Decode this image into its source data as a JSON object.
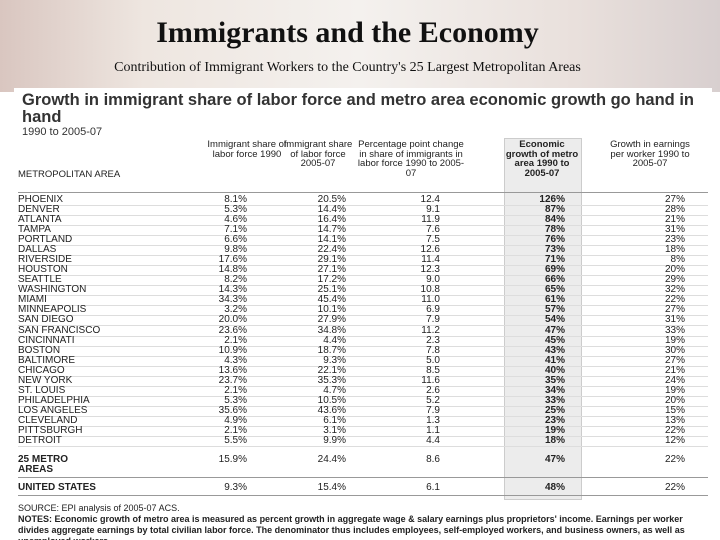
{
  "slide": {
    "title": "Immigrants and the Economy",
    "subtitle": "Contribution of Immigrant Workers to the Country's 25 Largest Metropolitan Areas"
  },
  "figure": {
    "title": "Growth in immigrant share of labor force and metro area economic growth go hand in hand",
    "subtitle": "1990 to 2005-07",
    "table": {
      "headers": [
        "METROPOLITAN AREA",
        "Immigrant share of labor force 1990",
        "Immigrant share of labor force 2005-07",
        "Percentage point change in share of immigrants in labor force 1990 to 2005-07",
        "Economic growth of metro area 1990 to 2005-07",
        "Growth in earnings per worker 1990 to 2005-07"
      ],
      "rows": [
        [
          "PHOENIX",
          "8.1%",
          "20.5%",
          "12.4",
          "126%",
          "27%"
        ],
        [
          "DENVER",
          "5.3%",
          "14.4%",
          "9.1",
          "87%",
          "28%"
        ],
        [
          "ATLANTA",
          "4.6%",
          "16.4%",
          "11.9",
          "84%",
          "21%"
        ],
        [
          "TAMPA",
          "7.1%",
          "14.7%",
          "7.6",
          "78%",
          "31%"
        ],
        [
          "PORTLAND",
          "6.6%",
          "14.1%",
          "7.5",
          "76%",
          "23%"
        ],
        [
          "DALLAS",
          "9.8%",
          "22.4%",
          "12.6",
          "73%",
          "18%"
        ],
        [
          "RIVERSIDE",
          "17.6%",
          "29.1%",
          "11.4",
          "71%",
          "8%"
        ],
        [
          "HOUSTON",
          "14.8%",
          "27.1%",
          "12.3",
          "69%",
          "20%"
        ],
        [
          "SEATTLE",
          "8.2%",
          "17.2%",
          "9.0",
          "66%",
          "29%"
        ],
        [
          "WASHINGTON",
          "14.3%",
          "25.1%",
          "10.8",
          "65%",
          "32%"
        ],
        [
          "MIAMI",
          "34.3%",
          "45.4%",
          "11.0",
          "61%",
          "22%"
        ],
        [
          "MINNEAPOLIS",
          "3.2%",
          "10.1%",
          "6.9",
          "57%",
          "27%"
        ],
        [
          "SAN DIEGO",
          "20.0%",
          "27.9%",
          "7.9",
          "54%",
          "31%"
        ],
        [
          "SAN FRANCISCO",
          "23.6%",
          "34.8%",
          "11.2",
          "47%",
          "33%"
        ],
        [
          "CINCINNATI",
          "2.1%",
          "4.4%",
          "2.3",
          "45%",
          "19%"
        ],
        [
          "BOSTON",
          "10.9%",
          "18.7%",
          "7.8",
          "43%",
          "30%"
        ],
        [
          "BALTIMORE",
          "4.3%",
          "9.3%",
          "5.0",
          "41%",
          "27%"
        ],
        [
          "CHICAGO",
          "13.6%",
          "22.1%",
          "8.5",
          "40%",
          "21%"
        ],
        [
          "NEW YORK",
          "23.7%",
          "35.3%",
          "11.6",
          "35%",
          "24%"
        ],
        [
          "ST. LOUIS",
          "2.1%",
          "4.7%",
          "2.6",
          "34%",
          "19%"
        ],
        [
          "PHILADELPHIA",
          "5.3%",
          "10.5%",
          "5.2",
          "33%",
          "20%"
        ],
        [
          "LOS ANGELES",
          "35.6%",
          "43.6%",
          "7.9",
          "25%",
          "15%"
        ],
        [
          "CLEVELAND",
          "4.9%",
          "6.1%",
          "1.3",
          "23%",
          "13%"
        ],
        [
          "PITTSBURGH",
          "2.1%",
          "3.1%",
          "1.1",
          "19%",
          "22%"
        ],
        [
          "DETROIT",
          "5.5%",
          "9.9%",
          "4.4",
          "18%",
          "12%"
        ]
      ],
      "totals": [
        [
          "25 METRO AREAS",
          "15.9%",
          "24.4%",
          "8.6",
          "47%",
          "22%"
        ],
        [
          "UNITED STATES",
          "9.3%",
          "15.4%",
          "6.1",
          "48%",
          "22%"
        ]
      ]
    },
    "source": "SOURCE: EPI analysis of 2005-07 ACS.",
    "notes": "NOTES: Economic growth of metro area is measured as percent growth in aggregate wage & salary earnings plus proprietors' income. Earnings per worker divides aggregate earnings by total civilian labor force. The denominator thus includes employees, self-employed workers, and business owners, as well as unemployed workers."
  }
}
